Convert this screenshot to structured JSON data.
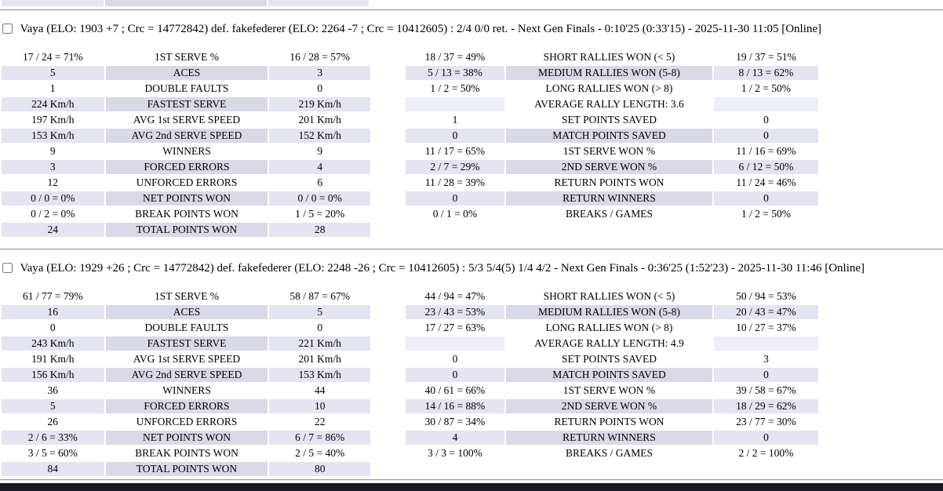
{
  "colors": {
    "row-even-value": "#e4e4f2",
    "row-even-label": "#d9d9e8",
    "row-avg-value": "#eeeef8",
    "bottom-bar": "#181824"
  },
  "page": {
    "matches": [
      {
        "header": "Vaya (ELO: 1903 +7 ; Crc = 14772842) def. fakefederer (ELO: 2264 -7 ; Crc = 10412605) : 2/4 0/0 ret. - Next Gen Finals - 0:10'25 (0:33'15) - 2025-11-30 11:05 [Online]",
        "checkbox_checked": false,
        "serve_table": {
          "rows": [
            [
              "17 / 24 = 71%",
              "1ST SERVE %",
              "16 / 28 = 57%"
            ],
            [
              "5",
              "ACES",
              "3"
            ],
            [
              "1",
              "DOUBLE FAULTS",
              "0"
            ],
            [
              "224 Km/h",
              "FASTEST SERVE",
              "219 Km/h"
            ],
            [
              "197 Km/h",
              "AVG 1st SERVE SPEED",
              "201 Km/h"
            ],
            [
              "153 Km/h",
              "AVG 2nd SERVE SPEED",
              "152 Km/h"
            ],
            [
              "9",
              "WINNERS",
              "9"
            ],
            [
              "3",
              "FORCED ERRORS",
              "4"
            ],
            [
              "12",
              "UNFORCED ERRORS",
              "6"
            ],
            [
              "0 / 0 = 0%",
              "NET POINTS WON",
              "0 / 0 = 0%"
            ],
            [
              "0 / 2 = 0%",
              "BREAK POINTS WON",
              "1 / 5 = 20%"
            ],
            [
              "24",
              "TOTAL POINTS WON",
              "28"
            ]
          ]
        },
        "rally_table": {
          "rows": [
            [
              "18 / 37 = 49%",
              "SHORT RALLIES WON (< 5)",
              "19 / 37 = 51%"
            ],
            [
              "5 / 13 = 38%",
              "MEDIUM RALLIES WON (5-8)",
              "8 / 13 = 62%"
            ],
            [
              "1 / 2 = 50%",
              "LONG RALLIES WON (> 8)",
              "1 / 2 = 50%"
            ],
            [
              "",
              "AVERAGE RALLY LENGTH: 3.6",
              ""
            ],
            [
              "1",
              "SET POINTS SAVED",
              "0"
            ],
            [
              "0",
              "MATCH POINTS SAVED",
              "0"
            ],
            [
              "11 / 17 = 65%",
              "1ST SERVE WON %",
              "11 / 16 = 69%"
            ],
            [
              "2 / 7 = 29%",
              "2ND SERVE WON %",
              "6 / 12 = 50%"
            ],
            [
              "11 / 28 = 39%",
              "RETURN POINTS WON",
              "11 / 24 = 46%"
            ],
            [
              "0",
              "RETURN WINNERS",
              "0"
            ],
            [
              "0 / 1 = 0%",
              "BREAKS / GAMES",
              "1 / 2 = 50%"
            ]
          ]
        }
      },
      {
        "header": "Vaya (ELO: 1929 +26 ; Crc = 14772842) def. fakefederer (ELO: 2248 -26 ; Crc = 10412605) : 5/3 5/4(5) 1/4 4/2 - Next Gen Finals - 0:36'25 (1:52'23) - 2025-11-30 11:46 [Online]",
        "checkbox_checked": false,
        "serve_table": {
          "rows": [
            [
              "61 / 77 = 79%",
              "1ST SERVE %",
              "58 / 87 = 67%"
            ],
            [
              "16",
              "ACES",
              "5"
            ],
            [
              "0",
              "DOUBLE FAULTS",
              "0"
            ],
            [
              "243 Km/h",
              "FASTEST SERVE",
              "221 Km/h"
            ],
            [
              "191 Km/h",
              "AVG 1st SERVE SPEED",
              "201 Km/h"
            ],
            [
              "156 Km/h",
              "AVG 2nd SERVE SPEED",
              "153 Km/h"
            ],
            [
              "36",
              "WINNERS",
              "44"
            ],
            [
              "5",
              "FORCED ERRORS",
              "10"
            ],
            [
              "26",
              "UNFORCED ERRORS",
              "22"
            ],
            [
              "2 / 6 = 33%",
              "NET POINTS WON",
              "6 / 7 = 86%"
            ],
            [
              "3 / 5 = 60%",
              "BREAK POINTS WON",
              "2 / 5 = 40%"
            ],
            [
              "84",
              "TOTAL POINTS WON",
              "80"
            ]
          ]
        },
        "rally_table": {
          "rows": [
            [
              "44 / 94 = 47%",
              "SHORT RALLIES WON (< 5)",
              "50 / 94 = 53%"
            ],
            [
              "23 / 43 = 53%",
              "MEDIUM RALLIES WON (5-8)",
              "20 / 43 = 47%"
            ],
            [
              "17 / 27 = 63%",
              "LONG RALLIES WON (> 8)",
              "10 / 27 = 37%"
            ],
            [
              "",
              "AVERAGE RALLY LENGTH: 4.9",
              ""
            ],
            [
              "0",
              "SET POINTS SAVED",
              "3"
            ],
            [
              "0",
              "MATCH POINTS SAVED",
              "0"
            ],
            [
              "40 / 61 = 66%",
              "1ST SERVE WON %",
              "39 / 58 = 67%"
            ],
            [
              "14 / 16 = 88%",
              "2ND SERVE WON %",
              "18 / 29 = 62%"
            ],
            [
              "30 / 87 = 34%",
              "RETURN POINTS WON",
              "23 / 77 = 30%"
            ],
            [
              "4",
              "RETURN WINNERS",
              "0"
            ],
            [
              "3 / 3 = 100%",
              "BREAKS / GAMES",
              "2 / 2 = 100%"
            ]
          ]
        }
      }
    ]
  }
}
